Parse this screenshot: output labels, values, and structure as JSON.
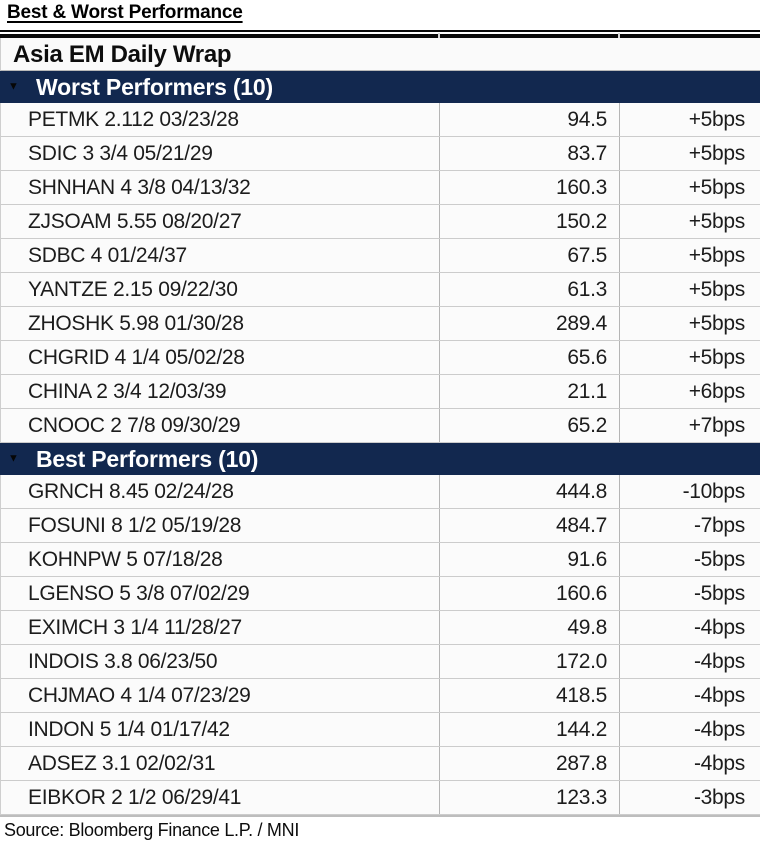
{
  "page": {
    "title": "Best & Worst Performance"
  },
  "table": {
    "header": "Asia EM Daily Wrap",
    "sections": [
      {
        "label": "Worst Performers (10)",
        "collapse_icon": "triangle-down-icon",
        "rows": [
          {
            "name": "PETMK 2.112 03/23/28",
            "value": "94.5",
            "change": "+5bps"
          },
          {
            "name": "SDIC 3 3/4 05/21/29",
            "value": "83.7",
            "change": "+5bps"
          },
          {
            "name": "SHNHAN 4 3/8 04/13/32",
            "value": "160.3",
            "change": "+5bps"
          },
          {
            "name": "ZJSOAM 5.55 08/20/27",
            "value": "150.2",
            "change": "+5bps"
          },
          {
            "name": "SDBC 4 01/24/37",
            "value": "67.5",
            "change": "+5bps"
          },
          {
            "name": "YANTZE 2.15 09/22/30",
            "value": "61.3",
            "change": "+5bps"
          },
          {
            "name": "ZHOSHK 5.98 01/30/28",
            "value": "289.4",
            "change": "+5bps"
          },
          {
            "name": "CHGRID 4 1/4 05/02/28",
            "value": "65.6",
            "change": "+5bps"
          },
          {
            "name": "CHINA 2 3/4 12/03/39",
            "value": "21.1",
            "change": "+6bps"
          },
          {
            "name": "CNOOC 2 7/8 09/30/29",
            "value": "65.2",
            "change": "+7bps"
          }
        ]
      },
      {
        "label": "Best Performers (10)",
        "collapse_icon": "triangle-down-icon",
        "rows": [
          {
            "name": "GRNCH 8.45 02/24/28",
            "value": "444.8",
            "change": "-10bps"
          },
          {
            "name": "FOSUNI 8 1/2 05/19/28",
            "value": "484.7",
            "change": "-7bps"
          },
          {
            "name": "KOHNPW 5 07/18/28",
            "value": "91.6",
            "change": "-5bps"
          },
          {
            "name": "LGENSO 5 3/8 07/02/29",
            "value": "160.6",
            "change": "-5bps"
          },
          {
            "name": "EXIMCH 3 1/4 11/28/27",
            "value": "49.8",
            "change": "-4bps"
          },
          {
            "name": "INDOIS 3.8 06/23/50",
            "value": "172.0",
            "change": "-4bps"
          },
          {
            "name": "CHJMAO 4 1/4 07/23/29",
            "value": "418.5",
            "change": "-4bps"
          },
          {
            "name": "INDON 5 1/4 01/17/42",
            "value": "144.2",
            "change": "-4bps"
          },
          {
            "name": "ADSEZ 3.1 02/02/31",
            "value": "287.8",
            "change": "-4bps"
          },
          {
            "name": "EIBKOR 2 1/2 06/29/41",
            "value": "123.3",
            "change": "-3bps"
          }
        ]
      }
    ]
  },
  "source": "Source: Bloomberg Finance L.P. / MNI",
  "colors": {
    "section_bar_navy": "#12284f",
    "section_text": "#ffffff",
    "row_background": "#fbfbfb",
    "row_text": "#1c1c1c",
    "grid_line": "#cccccc",
    "column_divider": "#b5b5b5",
    "top_border": "#0a0a0a"
  },
  "icons": {
    "triangle_glyph": "▼"
  }
}
